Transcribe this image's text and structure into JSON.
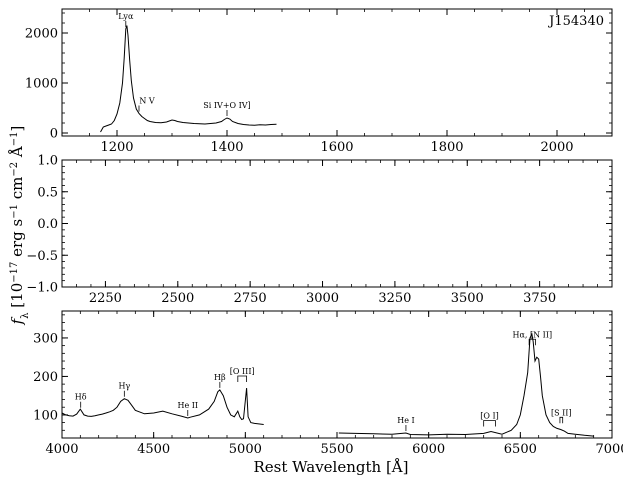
{
  "chart_data": [
    {
      "type": "line",
      "panel": "top",
      "object_label": "J154340",
      "xlim": [
        1100,
        2100
      ],
      "ylim": [
        -60,
        2480
      ],
      "xticks": [
        1200,
        1400,
        1600,
        1800,
        2000
      ],
      "xticks_minor_step": 50,
      "yticks": [
        0,
        1000,
        2000
      ],
      "yticks_minor_step": 200,
      "ytick_labels": [
        "0",
        "1000",
        "2000"
      ],
      "xtick_labels": [
        "1200",
        "1400",
        "1600",
        "1800",
        "2000"
      ],
      "series": [
        {
          "x": [
            1170,
            1175,
            1180,
            1185,
            1190,
            1195,
            1200,
            1205,
            1210,
            1213,
            1216,
            1218,
            1220,
            1223,
            1226,
            1230,
            1235,
            1240,
            1245,
            1250,
            1255,
            1260,
            1270,
            1280,
            1290,
            1300,
            1305,
            1310,
            1320,
            1330,
            1340,
            1350,
            1360,
            1370,
            1380,
            1390,
            1395,
            1400,
            1405,
            1410,
            1420,
            1430,
            1440,
            1450,
            1460,
            1470,
            1480,
            1490
          ],
          "y": [
            20,
            120,
            140,
            160,
            180,
            250,
            380,
            600,
            1000,
            1500,
            2080,
            2150,
            1950,
            1450,
            1050,
            700,
            480,
            390,
            330,
            290,
            250,
            230,
            210,
            205,
            220,
            260,
            250,
            230,
            210,
            200,
            190,
            185,
            180,
            190,
            200,
            230,
            270,
            300,
            280,
            230,
            190,
            170,
            160,
            155,
            165,
            160,
            170,
            175
          ]
        }
      ],
      "annotations": [
        {
          "text": "Lyα",
          "x": 1216
        },
        {
          "text": "N V",
          "x": 1240
        },
        {
          "text": "Si IV+O IV]",
          "x": 1400
        }
      ]
    },
    {
      "type": "line",
      "panel": "middle",
      "xlim": [
        2100,
        4000
      ],
      "ylim": [
        -1.0,
        1.0
      ],
      "xticks": [
        2250,
        2500,
        2750,
        3000,
        3250,
        3500,
        3750
      ],
      "xticks_minor_step": 50,
      "xtick_labels": [
        "2250",
        "2500",
        "2750",
        "3000",
        "3250",
        "3500",
        "3750"
      ],
      "yticks": [
        -1.0,
        -0.5,
        0.0,
        0.5,
        1.0
      ],
      "yticks_minor_step": 0.1,
      "ytick_labels": [
        "−1.0",
        "−0.5",
        "0.0",
        "0.5",
        "1.0"
      ],
      "series": []
    },
    {
      "type": "line",
      "panel": "bottom",
      "xlim": [
        4000,
        7000
      ],
      "ylim": [
        40,
        370
      ],
      "xticks": [
        4000,
        4500,
        5000,
        5500,
        6000,
        6500,
        7000
      ],
      "xticks_minor_step": 100,
      "xtick_labels": [
        "4000",
        "4500",
        "5000",
        "5500",
        "6000",
        "6500",
        "7000"
      ],
      "yticks": [
        100,
        200,
        300
      ],
      "yticks_minor_step": 20,
      "ytick_labels": [
        "100",
        "200",
        "300"
      ],
      "xlabel": "Rest Wavelength [Å]",
      "series": [
        {
          "x": [
            4000,
            4020,
            4040,
            4060,
            4080,
            4100,
            4120,
            4140,
            4160,
            4180,
            4200,
            4220,
            4240,
            4260,
            4280,
            4300,
            4320,
            4340,
            4360,
            4380,
            4400,
            4450,
            4500,
            4550,
            4600,
            4650,
            4686,
            4700,
            4750,
            4800,
            4830,
            4850,
            4861,
            4880,
            4900,
            4920,
            4940,
            4959,
            4970,
            4980,
            4990,
            5007,
            5015,
            5030,
            5050,
            5100
          ],
          "y": [
            105,
            100,
            98,
            97,
            102,
            115,
            100,
            97,
            96,
            98,
            100,
            102,
            105,
            108,
            112,
            120,
            135,
            142,
            138,
            125,
            112,
            103,
            105,
            110,
            103,
            97,
            92,
            94,
            100,
            115,
            135,
            160,
            165,
            150,
            120,
            100,
            95,
            110,
            95,
            88,
            90,
            170,
            95,
            80,
            78,
            75
          ]
        },
        {
          "x": [
            5510,
            5600,
            5700,
            5800,
            5876,
            5900,
            6000,
            6100,
            6200,
            6300,
            6340,
            6400,
            6450,
            6480,
            6500,
            6520,
            6540,
            6553,
            6563,
            6570,
            6580,
            6590,
            6600,
            6610,
            6620,
            6640,
            6660,
            6680,
            6700,
            6720,
            6740,
            6760,
            6800,
            6850,
            6900
          ],
          "y": [
            53,
            52,
            51,
            50,
            53,
            49,
            48,
            50,
            49,
            52,
            57,
            50,
            60,
            75,
            100,
            150,
            210,
            300,
            310,
            290,
            240,
            250,
            245,
            200,
            150,
            100,
            80,
            70,
            65,
            62,
            58,
            52,
            50,
            47,
            45
          ]
        }
      ],
      "annotations": [
        {
          "text": "Hδ",
          "x": 4102
        },
        {
          "text": "Hγ",
          "x": 4340
        },
        {
          "text": "He II",
          "x": 4686
        },
        {
          "text": "Hβ",
          "x": 4861
        },
        {
          "text": "[O III]",
          "x1": 4959,
          "x2": 5007
        },
        {
          "text": "He I",
          "x": 5876
        },
        {
          "text": "[O I]",
          "x1": 6300,
          "x2": 6364
        },
        {
          "text": "Hα, [N II]",
          "x1": 6548,
          "x2": 6583
        },
        {
          "text": "[S II]",
          "x1": 6716,
          "x2": 6731
        }
      ]
    }
  ],
  "ylabel": "f_λ [10^−17 erg s^−1 cm^−2 Å^−1]"
}
